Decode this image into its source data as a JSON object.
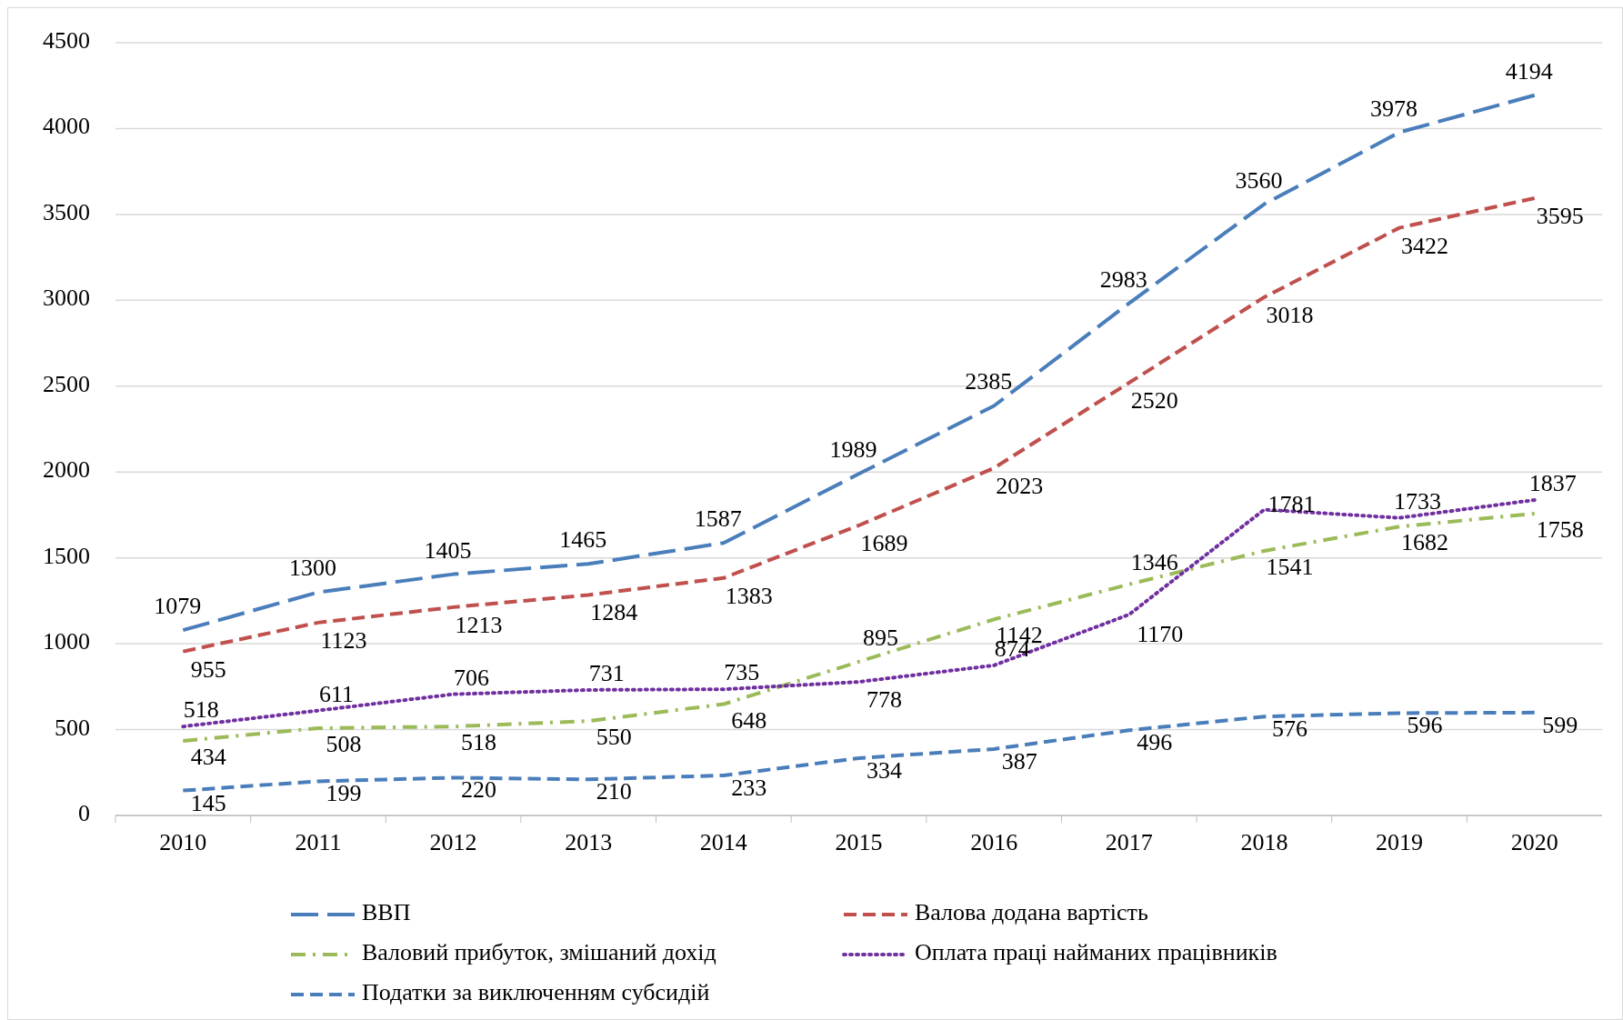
{
  "chart_data": {
    "type": "line",
    "categories": [
      "2010",
      "2011",
      "2012",
      "2013",
      "2014",
      "2015",
      "2016",
      "2017",
      "2018",
      "2019",
      "2020"
    ],
    "ylim": [
      0,
      4500
    ],
    "yticks": [
      0,
      500,
      1000,
      1500,
      2000,
      2500,
      3000,
      3500,
      4000,
      4500
    ],
    "grid": "y",
    "legend": "bottom",
    "data_labels": true,
    "marker": "none",
    "series": [
      {
        "name": "ВВП",
        "color": "#4a7ebb",
        "line_style": "longdash",
        "values": [
          1079,
          1300,
          1405,
          1465,
          1587,
          1989,
          2385,
          2983,
          3560,
          3978,
          4194
        ]
      },
      {
        "name": "Валова додана вартість",
        "color": "#c0504d",
        "line_style": "dashed",
        "values": [
          955,
          1123,
          1213,
          1284,
          1383,
          1689,
          2023,
          2520,
          3018,
          3422,
          3595
        ]
      },
      {
        "name": "Валовий прибуток, змішаний дохід",
        "color": "#9bbb59",
        "line_style": "dashdot",
        "values": [
          434,
          508,
          518,
          550,
          648,
          895,
          1142,
          1346,
          1541,
          1682,
          1758
        ]
      },
      {
        "name": "Оплата праці найманих працівників",
        "color": "#7030a0",
        "line_style": "dotted",
        "values": [
          518,
          611,
          706,
          731,
          735,
          778,
          874,
          1170,
          1781,
          1733,
          1837
        ]
      },
      {
        "name": "Податки за виключенням субсидій",
        "color": "#4a7ebb",
        "line_style": "dashed",
        "values": [
          145,
          199,
          220,
          210,
          233,
          334,
          387,
          496,
          576,
          596,
          599
        ]
      }
    ]
  }
}
